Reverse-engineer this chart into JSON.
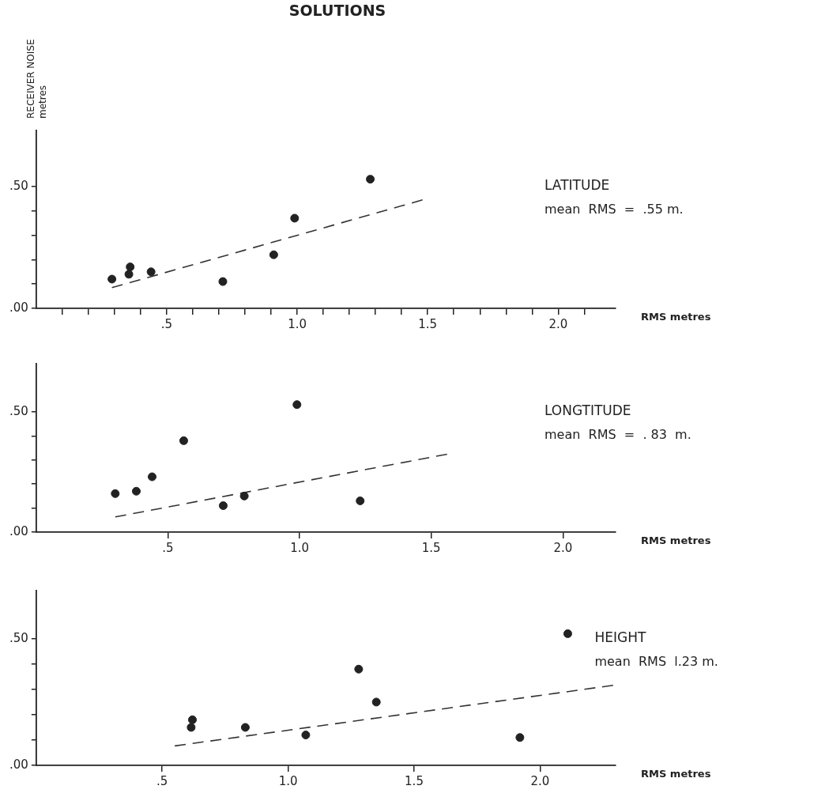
{
  "chart_data": [
    {
      "type": "scatter",
      "title": "SOLUTIONS",
      "ylabel": "RECEIVER NOISE metres",
      "xlabel": "RMS metres",
      "annotations": [
        "LATITUDE",
        "mean  RMS  =  .55 m."
      ],
      "xlim": [
        0,
        2.22
      ],
      "ylim": [
        0,
        0.73
      ],
      "xticks": [
        {
          "value": 0.1,
          "label": null
        },
        {
          "value": 0.2,
          "label": null
        },
        {
          "value": 0.3,
          "label": null
        },
        {
          "value": 0.4,
          "label": null
        },
        {
          "value": 0.5,
          "label": ".5"
        },
        {
          "value": 0.6,
          "label": null
        },
        {
          "value": 0.7,
          "label": null
        },
        {
          "value": 0.8,
          "label": null
        },
        {
          "value": 0.9,
          "label": null
        },
        {
          "value": 1.0,
          "label": "1.0"
        },
        {
          "value": 1.1,
          "label": null
        },
        {
          "value": 1.2,
          "label": null
        },
        {
          "value": 1.3,
          "label": null
        },
        {
          "value": 1.4,
          "label": null
        },
        {
          "value": 1.5,
          "label": "1.5"
        },
        {
          "value": 1.6,
          "label": null
        },
        {
          "value": 1.7,
          "label": null
        },
        {
          "value": 1.8,
          "label": null
        },
        {
          "value": 1.9,
          "label": null
        },
        {
          "value": 2.0,
          "label": "2.0"
        },
        {
          "value": 2.1,
          "label": null
        }
      ],
      "yticks": [
        {
          "value": 0,
          "label": ".00"
        },
        {
          "value": 0.1,
          "label": null
        },
        {
          "value": 0.2,
          "label": null
        },
        {
          "value": 0.3,
          "label": null
        },
        {
          "value": 0.4,
          "label": null
        },
        {
          "value": 0.5,
          "label": ".50"
        }
      ],
      "series": [
        {
          "type": "scatter",
          "color": "#222222",
          "marker": "circle",
          "x": [
            0.29,
            0.36,
            0.355,
            0.44,
            0.715,
            0.91,
            0.99,
            1.28
          ],
          "values": [
            0.12,
            0.17,
            0.14,
            0.15,
            0.11,
            0.22,
            0.37,
            0.53
          ]
        },
        {
          "type": "line",
          "color": "#333333",
          "line_style": "dashed",
          "marker": "none",
          "x": [
            0.29,
            1.48
          ],
          "values": [
            0.085,
            0.445
          ]
        }
      ]
    },
    {
      "type": "scatter",
      "xlabel": "RMS metres",
      "annotations": [
        "LONGTITUDE",
        "mean  RMS  =  . 83  m."
      ],
      "xlim": [
        0,
        2.2
      ],
      "ylim": [
        0,
        0.7
      ],
      "xticks": [
        {
          "value": 0.5,
          "label": ".5"
        },
        {
          "value": 1.0,
          "label": "1.0"
        },
        {
          "value": 1.5,
          "label": "1.5"
        },
        {
          "value": 2.0,
          "label": "2.0"
        }
      ],
      "yticks": [
        {
          "value": 0,
          "label": ".00"
        },
        {
          "value": 0.1,
          "label": null
        },
        {
          "value": 0.2,
          "label": null
        },
        {
          "value": 0.3,
          "label": null
        },
        {
          "value": 0.4,
          "label": null
        },
        {
          "value": 0.5,
          "label": ".50"
        }
      ],
      "series": [
        {
          "type": "scatter",
          "color": "#222222",
          "marker": "circle",
          "x": [
            0.3,
            0.38,
            0.44,
            0.56,
            0.71,
            0.79,
            0.99,
            1.23
          ],
          "values": [
            0.16,
            0.17,
            0.23,
            0.38,
            0.11,
            0.15,
            0.53,
            0.13
          ]
        },
        {
          "type": "line",
          "color": "#333333",
          "line_style": "dashed",
          "marker": "none",
          "x": [
            0.3,
            1.56
          ],
          "values": [
            0.063,
            0.324
          ]
        }
      ]
    },
    {
      "type": "scatter",
      "xlabel": "RMS metres",
      "annotations": [
        "HEIGHT",
        "mean  RMS  l.23 m."
      ],
      "xlim": [
        0,
        2.3
      ],
      "ylim": [
        0,
        0.69
      ],
      "xticks": [
        {
          "value": 0.5,
          "label": ".5"
        },
        {
          "value": 1.0,
          "label": "1.0"
        },
        {
          "value": 1.5,
          "label": "1.5"
        },
        {
          "value": 2.0,
          "label": "2.0"
        }
      ],
      "yticks": [
        {
          "value": 0,
          "label": ".00"
        },
        {
          "value": 0.1,
          "label": null
        },
        {
          "value": 0.2,
          "label": null
        },
        {
          "value": 0.3,
          "label": null
        },
        {
          "value": 0.4,
          "label": null
        },
        {
          "value": 0.5,
          "label": ".50"
        }
      ],
      "series": [
        {
          "type": "scatter",
          "color": "#222222",
          "marker": "circle",
          "x": [
            0.615,
            0.62,
            0.83,
            1.07,
            1.28,
            1.35,
            1.92,
            2.11
          ],
          "values": [
            0.15,
            0.18,
            0.15,
            0.12,
            0.38,
            0.25,
            0.11,
            0.52
          ]
        },
        {
          "type": "line",
          "color": "#333333",
          "line_style": "dashed",
          "marker": "none",
          "x": [
            0.55,
            2.29
          ],
          "values": [
            0.077,
            0.316
          ]
        }
      ]
    }
  ]
}
